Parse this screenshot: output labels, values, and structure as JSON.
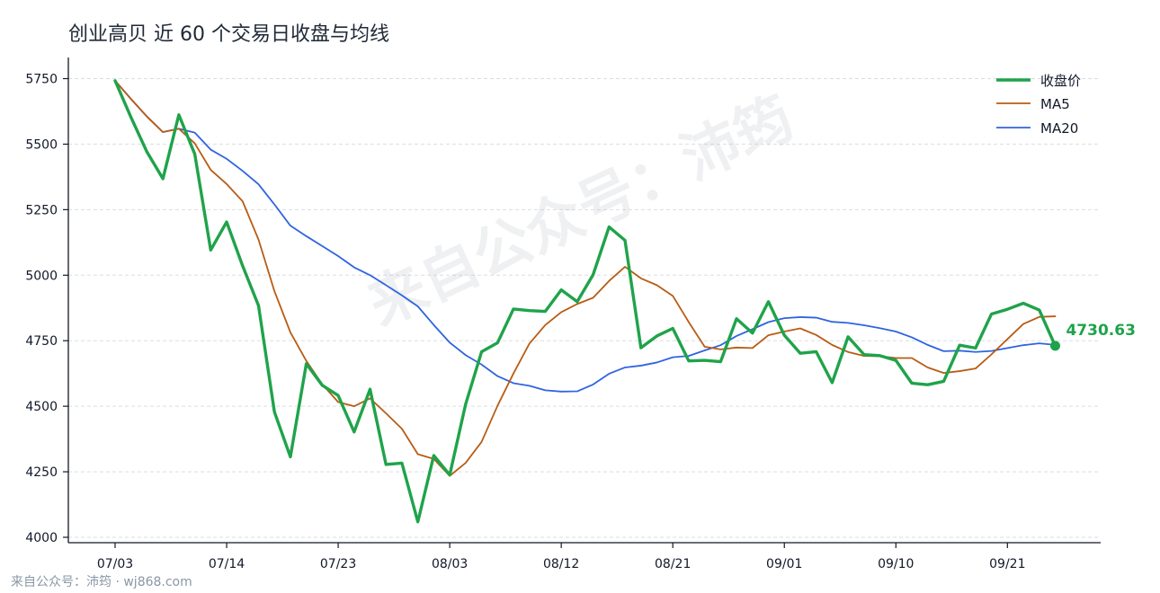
{
  "chart_data": {
    "type": "line",
    "title": "创业高贝 近 60 个交易日收盘与均线",
    "xlabel": "",
    "ylabel": "",
    "ylim": [
      3990,
      5775
    ],
    "yticks": [
      4000,
      4250,
      4500,
      4750,
      5000,
      5250,
      5500,
      5750
    ],
    "x_tick_labels": [
      {
        "index": 0,
        "label": "07/03"
      },
      {
        "index": 7,
        "label": "07/14"
      },
      {
        "index": 14,
        "label": "07/23"
      },
      {
        "index": 21,
        "label": "08/03"
      },
      {
        "index": 28,
        "label": "08/12"
      },
      {
        "index": 35,
        "label": "08/21"
      },
      {
        "index": 42,
        "label": "09/01"
      },
      {
        "index": 49,
        "label": "09/10"
      },
      {
        "index": 56,
        "label": "09/21"
      }
    ],
    "grid": "horizontal dashed",
    "legend_position": "top-right",
    "series": [
      {
        "name": "收盘价",
        "color": "#1fa34a",
        "values": [
          5742,
          5602,
          5470,
          5368,
          5612,
          5462,
          5096,
          5203,
          5036,
          4884,
          4478,
          4307,
          4662,
          4580,
          4541,
          4402,
          4565,
          4278,
          4283,
          4059,
          4312,
          4238,
          4508,
          4708,
          4742,
          4871,
          4865,
          4862,
          4944,
          4899,
          5002,
          5184,
          5133,
          4723,
          4768,
          4797,
          4673,
          4675,
          4670,
          4834,
          4779,
          4899,
          4771,
          4702,
          4708,
          4590,
          4765,
          4697,
          4693,
          4675,
          4588,
          4582,
          4595,
          4733,
          4722,
          4852,
          4870,
          4893,
          4867,
          4730.63
        ]
      },
      {
        "name": "MA5",
        "color": "#b85c14",
        "values": [
          5742,
          5672,
          5605,
          5546,
          5559,
          5503,
          5402,
          5348,
          5282,
          5136,
          4939,
          4782,
          4673,
          4584,
          4516,
          4500,
          4530,
          4473,
          4414,
          4317,
          4299,
          4234,
          4284,
          4364,
          4502,
          4625,
          4739,
          4810,
          4859,
          4890,
          4914,
          4978,
          5032,
          4988,
          4962,
          4921,
          4821,
          4727,
          4717,
          4724,
          4722,
          4771,
          4785,
          4797,
          4772,
          4734,
          4707,
          4692,
          4691,
          4684,
          4684,
          4648,
          4627,
          4634,
          4644,
          4698,
          4756,
          4814,
          4841,
          4843
        ]
      },
      {
        "name": "MA20",
        "color": "#2f64e0",
        "values": [
          5742,
          5672,
          5605,
          5546,
          5559,
          5544,
          5479,
          5444,
          5398,
          5347,
          5270,
          5189,
          5149,
          5111,
          5073,
          5030,
          5000,
          4962,
          4923,
          4881,
          4810,
          4743,
          4695,
          4659,
          4615,
          4588,
          4578,
          4561,
          4556,
          4557,
          4583,
          4624,
          4648,
          4655,
          4667,
          4687,
          4692,
          4713,
          4733,
          4768,
          4794,
          4821,
          4836,
          4840,
          4838,
          4822,
          4818,
          4809,
          4798,
          4785,
          4763,
          4734,
          4710,
          4712,
          4707,
          4711,
          4722,
          4733,
          4740,
          4734
        ]
      }
    ],
    "annotations": [
      {
        "text": "4730.63",
        "series": "收盘价",
        "index": 59,
        "color": "#1fa34a"
      }
    ]
  },
  "watermark": "来自公众号：沛筠",
  "footer": "来自公众号：沛筠 · wj868.com"
}
